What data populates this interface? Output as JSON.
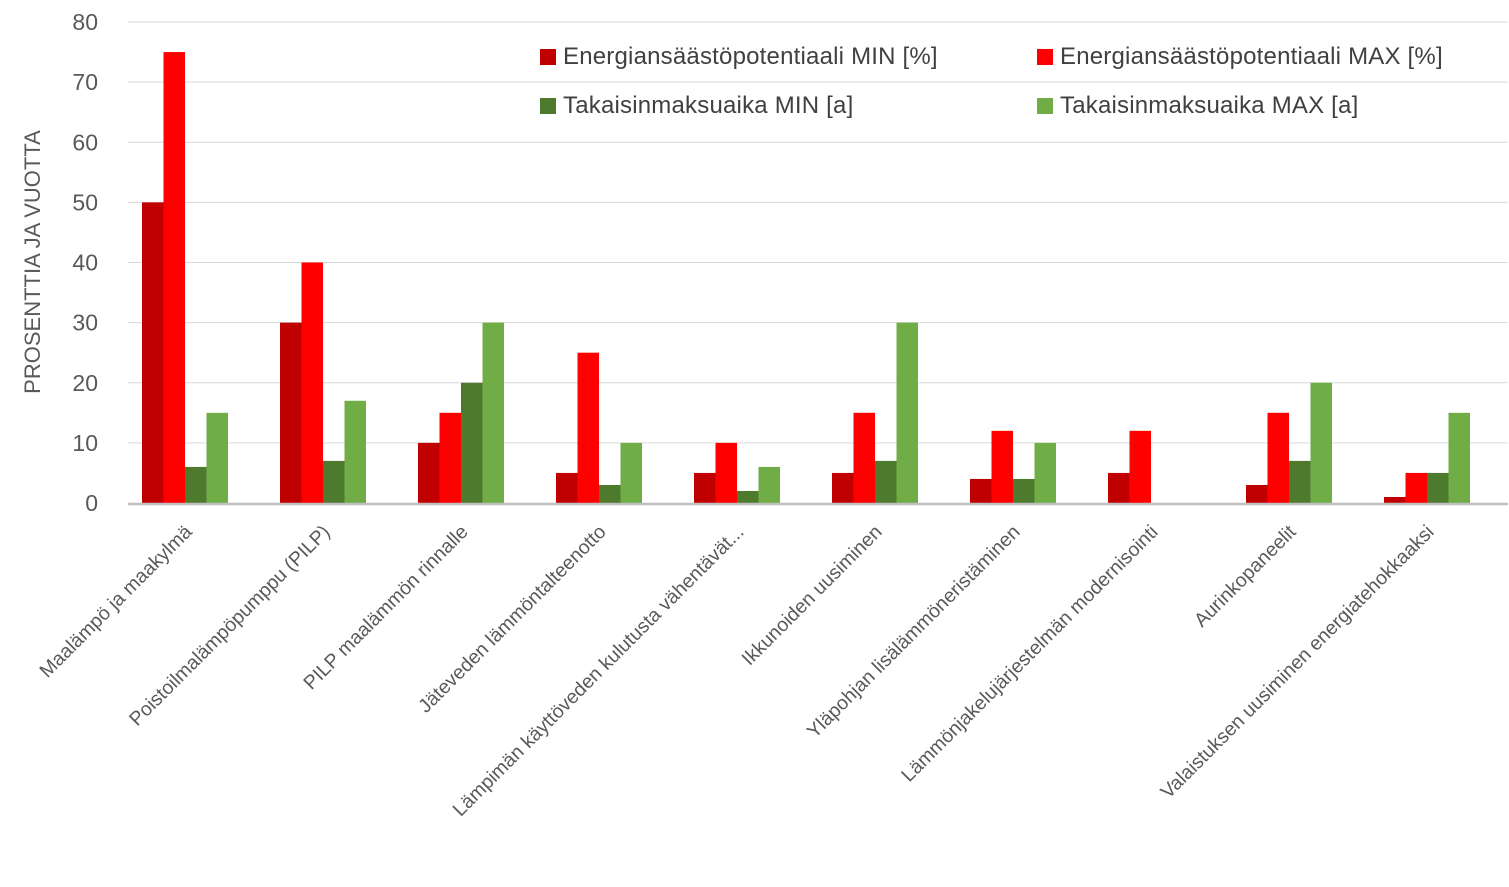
{
  "chart_data": {
    "type": "bar",
    "title": "",
    "xlabel": "",
    "ylabel": "PROSENTTIA JA VUOTTA",
    "ylim": [
      0,
      80
    ],
    "yticks": [
      0,
      10,
      20,
      30,
      40,
      50,
      60,
      70,
      80
    ],
    "grid": true,
    "legend_position": "top-right",
    "categories": [
      "Maalämpö ja maakylmä",
      "Poistoilmalämpöpumppu (PILP)",
      "PILP maalämmön rinnalle",
      "Jäteveden lämmöntalteenotto",
      "Lämpimän käyttöveden kulutusta vähentävät...",
      "Ikkunoiden uusiminen",
      "Yläpohjan lisälämmöneristäminen",
      "Lämmönjakelujärjestelmän modernisointi",
      "Aurinkopaneelit",
      "Valaistuksen uusiminen energiatehokkaaksi"
    ],
    "series": [
      {
        "name": "Energiansäästöpotentiaali MIN [%]",
        "color": "#C00000",
        "values": [
          50,
          30,
          10,
          5,
          5,
          5,
          4,
          5,
          3,
          1
        ]
      },
      {
        "name": "Energiansäästöpotentiaali MAX [%]",
        "color": "#FF0000",
        "values": [
          75,
          40,
          15,
          25,
          10,
          15,
          12,
          12,
          15,
          5
        ]
      },
      {
        "name": "Takaisinmaksuaika MIN [a]",
        "color": "#4E7A2E",
        "values": [
          6,
          7,
          20,
          3,
          2,
          7,
          4,
          0,
          7,
          5
        ]
      },
      {
        "name": "Takaisinmaksuaika MAX [a]",
        "color": "#70AD47",
        "values": [
          15,
          17,
          30,
          10,
          6,
          30,
          10,
          0,
          20,
          15
        ]
      }
    ]
  }
}
